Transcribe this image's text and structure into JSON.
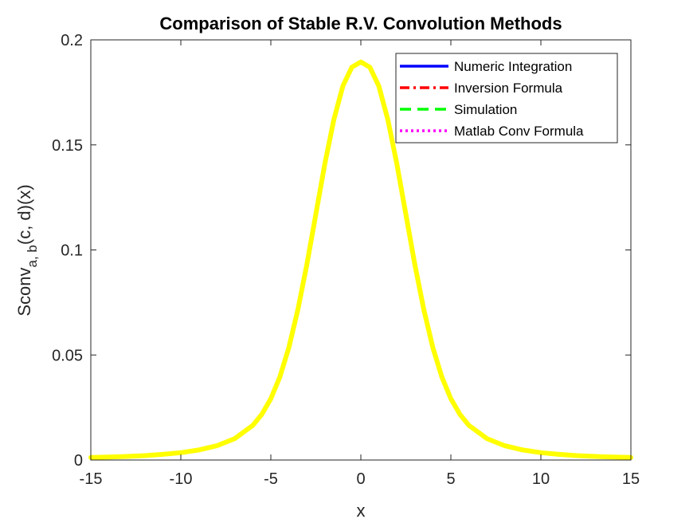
{
  "chart_data": {
    "type": "line",
    "title": "Comparison of Stable R.V. Convolution Methods",
    "xlabel": "x",
    "ylabel": {
      "main": "Sconv",
      "subscript": "a, b",
      "suffix": "(c, d)(x)"
    },
    "xlim": [
      -15,
      15
    ],
    "ylim": [
      0,
      0.2
    ],
    "xticks": [
      "-15",
      "-10",
      "-5",
      "0",
      "5",
      "10",
      "15"
    ],
    "yticks": [
      "0",
      "0.05",
      "0.1",
      "0.15",
      "0.2"
    ],
    "grid": false,
    "legend_position": "top-right",
    "x": [
      -15,
      -14,
      -13,
      -12,
      -11,
      -10,
      -9,
      -8,
      -7,
      -6,
      -5.5,
      -5,
      -4.5,
      -4,
      -3.5,
      -3,
      -2.5,
      -2,
      -1.5,
      -1,
      -0.5,
      0,
      0.5,
      1,
      1.5,
      2,
      2.5,
      3,
      3.5,
      4,
      4.5,
      5,
      5.5,
      6,
      7,
      8,
      9,
      10,
      11,
      12,
      13,
      14,
      15
    ],
    "series": [
      {
        "name": "Numeric Integration",
        "color": "#0000ff",
        "line_style": "solid",
        "values": [
          0.0012,
          0.0014,
          0.0017,
          0.0021,
          0.0027,
          0.0035,
          0.0048,
          0.0068,
          0.0102,
          0.0165,
          0.0218,
          0.0292,
          0.0395,
          0.0535,
          0.0715,
          0.093,
          0.117,
          0.141,
          0.162,
          0.178,
          0.187,
          0.1895,
          0.187,
          0.178,
          0.162,
          0.141,
          0.117,
          0.093,
          0.0715,
          0.0535,
          0.0395,
          0.0292,
          0.0218,
          0.0165,
          0.0102,
          0.0068,
          0.0048,
          0.0035,
          0.0027,
          0.0021,
          0.0017,
          0.0014,
          0.0012
        ]
      },
      {
        "name": "Inversion Formula",
        "color": "#ff0000",
        "line_style": "dashdot",
        "values": [
          0.0012,
          0.0014,
          0.0017,
          0.0021,
          0.0027,
          0.0035,
          0.0048,
          0.0068,
          0.0102,
          0.0165,
          0.0218,
          0.0292,
          0.0395,
          0.0535,
          0.0715,
          0.093,
          0.117,
          0.141,
          0.162,
          0.178,
          0.187,
          0.1895,
          0.187,
          0.178,
          0.162,
          0.141,
          0.117,
          0.093,
          0.0715,
          0.0535,
          0.0395,
          0.0292,
          0.0218,
          0.0165,
          0.0102,
          0.0068,
          0.0048,
          0.0035,
          0.0027,
          0.0021,
          0.0017,
          0.0014,
          0.0012
        ]
      },
      {
        "name": "Simulation",
        "color": "#00ff00",
        "line_style": "dashed",
        "values": [
          0.0012,
          0.0014,
          0.0017,
          0.0021,
          0.0027,
          0.0035,
          0.0048,
          0.0068,
          0.0102,
          0.0165,
          0.0218,
          0.0292,
          0.0395,
          0.0535,
          0.0715,
          0.093,
          0.117,
          0.141,
          0.162,
          0.178,
          0.187,
          0.1895,
          0.187,
          0.178,
          0.162,
          0.141,
          0.117,
          0.093,
          0.0715,
          0.0535,
          0.0395,
          0.0292,
          0.0218,
          0.0165,
          0.0102,
          0.0068,
          0.0048,
          0.0035,
          0.0027,
          0.0021,
          0.0017,
          0.0014,
          0.0012
        ]
      },
      {
        "name": "Matlab Conv Formula",
        "color": "#ff00ff",
        "line_style": "dotted",
        "values": [
          0.0012,
          0.0014,
          0.0017,
          0.0021,
          0.0027,
          0.0035,
          0.0048,
          0.0068,
          0.0102,
          0.0165,
          0.0218,
          0.0292,
          0.0395,
          0.0535,
          0.0715,
          0.093,
          0.117,
          0.141,
          0.162,
          0.178,
          0.187,
          0.1895,
          0.187,
          0.178,
          0.162,
          0.141,
          0.117,
          0.093,
          0.0715,
          0.0535,
          0.0395,
          0.0292,
          0.0218,
          0.0165,
          0.0102,
          0.0068,
          0.0048,
          0.0035,
          0.0027,
          0.0021,
          0.0017,
          0.0014,
          0.0012
        ]
      },
      {
        "color": "#ffff00",
        "line_style": "solid",
        "values": [
          0.0012,
          0.0014,
          0.0017,
          0.0021,
          0.0027,
          0.0035,
          0.0048,
          0.0068,
          0.0102,
          0.0165,
          0.0218,
          0.0292,
          0.0395,
          0.0535,
          0.0715,
          0.093,
          0.117,
          0.141,
          0.162,
          0.178,
          0.187,
          0.1895,
          0.187,
          0.178,
          0.162,
          0.141,
          0.117,
          0.093,
          0.0715,
          0.0535,
          0.0395,
          0.0292,
          0.0218,
          0.0165,
          0.0102,
          0.0068,
          0.0048,
          0.0035,
          0.0027,
          0.0021,
          0.0017,
          0.0014,
          0.0012
        ]
      }
    ]
  }
}
